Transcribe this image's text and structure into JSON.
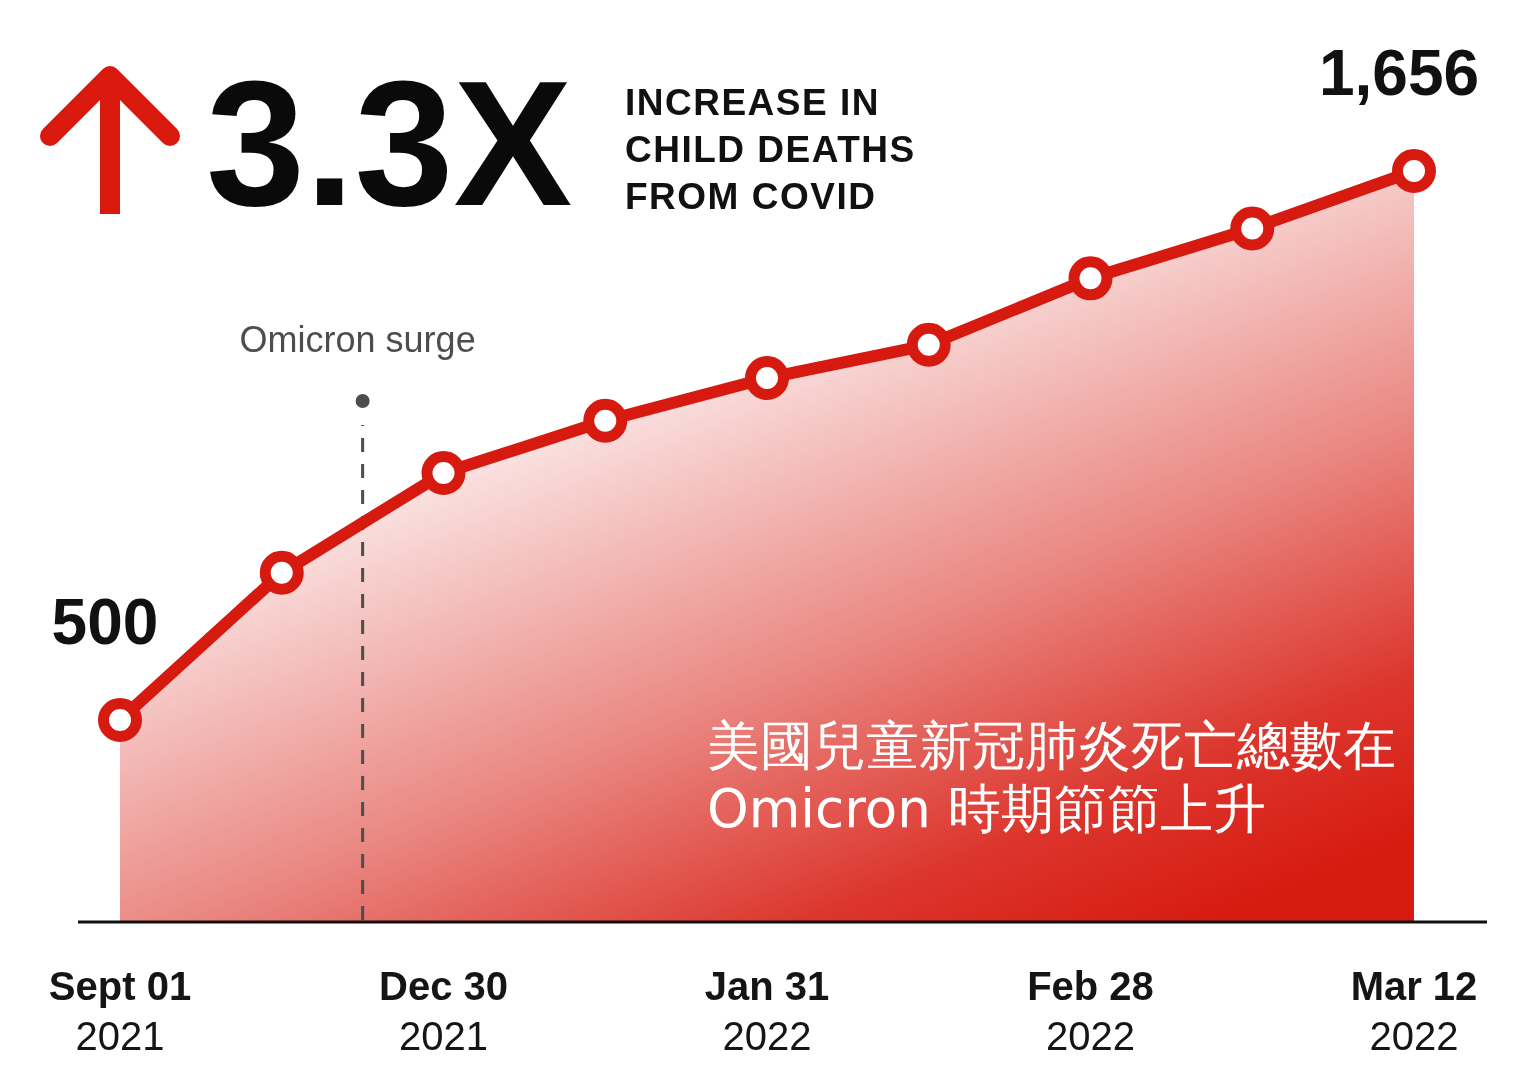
{
  "chart_data": {
    "type": "area",
    "title": "3.3X",
    "subtitle": "INCREASE IN\nCHILD DEATHS\nFROM COVID",
    "categories": [
      "Sept 01\n2021",
      null,
      "Dec 30\n2021",
      null,
      "Jan 31\n2022",
      null,
      "Feb 28\n2022",
      null,
      "Mar 12\n2022"
    ],
    "values": [
      500,
      810,
      1020,
      1130,
      1220,
      1290,
      1430,
      1535,
      1656
    ],
    "value_labels": [
      "500",
      null,
      null,
      null,
      null,
      null,
      null,
      null,
      "1,656"
    ],
    "color": "#d71a10",
    "tick_labels": "x",
    "marker": "circle",
    "line_style": "solid",
    "annotations": [
      "Omicron surge",
      "美國兒童新冠肺炎死亡總數在\nOmicron 時期節節上升"
    ]
  }
}
